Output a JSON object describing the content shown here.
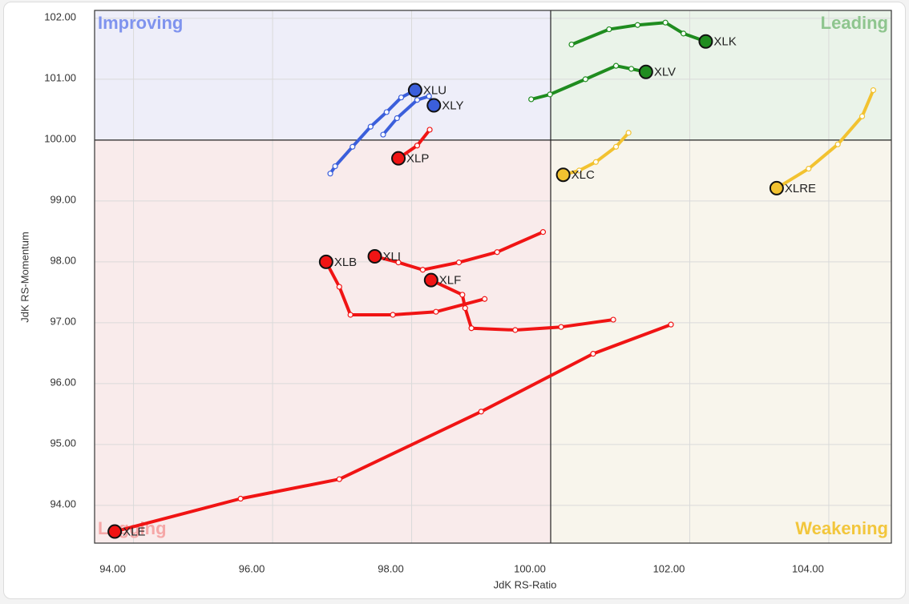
{
  "chart_data": {
    "type": "rrg",
    "x_label": "JdK RS-Ratio",
    "y_label": "JdK RS-Momentum",
    "quadrant_labels": [
      "Improving",
      "Leading",
      "Weakening",
      "Lagging"
    ],
    "quadrant_colors": [
      "#eeeef9",
      "#eaf3e9",
      "#f8f5ec",
      "#f9ebeb"
    ],
    "quadrant_label_colors": [
      "#7f93ee",
      "#8ec58e",
      "#f2c63c",
      "#f5a7a7"
    ],
    "xlim": [
      93.44,
      104.9
    ],
    "ylim": [
      93.38,
      102.13
    ],
    "xticks": [
      {
        "value": 94,
        "label": "94.00"
      },
      {
        "value": 96,
        "label": "96.00"
      },
      {
        "value": 98,
        "label": "98.00"
      },
      {
        "value": 100,
        "label": "100.00"
      },
      {
        "value": 102,
        "label": "102.00"
      },
      {
        "value": 104,
        "label": "104.00"
      }
    ],
    "yticks": [
      {
        "value": 94,
        "label": "94.00"
      },
      {
        "value": 95,
        "label": "95.00"
      },
      {
        "value": 96,
        "label": "96.00"
      },
      {
        "value": 97,
        "label": "97.00"
      },
      {
        "value": 98,
        "label": "98.00"
      },
      {
        "value": 99,
        "label": "99.00"
      },
      {
        "value": 100,
        "label": "100.00"
      },
      {
        "value": 101,
        "label": "101.00"
      },
      {
        "value": 102,
        "label": "102.00"
      }
    ],
    "grid": true,
    "series": [
      {
        "name": "XLK",
        "color": "#1f8c1f",
        "x": [
          100.3,
          100.84,
          101.25,
          101.65,
          101.91,
          102.23
        ],
        "y": [
          101.57,
          101.82,
          101.89,
          101.93,
          101.75,
          101.62
        ]
      },
      {
        "name": "XLV",
        "color": "#1f8c1f",
        "x": [
          99.72,
          99.99,
          100.5,
          100.94,
          101.16,
          101.37
        ],
        "y": [
          100.67,
          100.75,
          101.0,
          101.22,
          101.17,
          101.12
        ]
      },
      {
        "name": "XLU",
        "color": "#3b5fdb",
        "x": [
          96.83,
          96.9,
          97.15,
          97.41,
          97.64,
          97.85,
          98.05
        ],
        "y": [
          99.45,
          99.57,
          99.89,
          100.22,
          100.46,
          100.7,
          100.82
        ]
      },
      {
        "name": "XLY",
        "color": "#3b5fdb",
        "x": [
          97.59,
          97.79,
          98.08,
          98.25,
          98.32
        ],
        "y": [
          100.09,
          100.36,
          100.66,
          100.72,
          100.57
        ]
      },
      {
        "name": "XLP",
        "color": "#f01414",
        "x": [
          98.26,
          98.08,
          97.81
        ],
        "y": [
          100.17,
          99.91,
          99.7
        ]
      },
      {
        "name": "XLC",
        "color": "#f2c230",
        "x": [
          101.12,
          100.94,
          100.65,
          100.41,
          100.18
        ],
        "y": [
          100.12,
          99.89,
          99.64,
          99.5,
          99.43
        ]
      },
      {
        "name": "XLRE",
        "color": "#f2c230",
        "x": [
          104.64,
          104.48,
          104.13,
          103.71,
          103.25
        ],
        "y": [
          100.82,
          100.39,
          99.93,
          99.53,
          99.21
        ]
      },
      {
        "name": "XLI",
        "color": "#f01414",
        "x": [
          99.89,
          99.23,
          98.68,
          98.16,
          97.81,
          97.47
        ],
        "y": [
          98.49,
          98.16,
          97.99,
          97.87,
          97.99,
          98.09
        ]
      },
      {
        "name": "XLB",
        "color": "#f01414",
        "x": [
          99.05,
          98.35,
          97.73,
          97.12,
          96.96,
          96.77
        ],
        "y": [
          97.39,
          97.18,
          97.13,
          97.13,
          97.59,
          98.0
        ]
      },
      {
        "name": "XLF",
        "color": "#f01414",
        "x": [
          100.9,
          100.15,
          99.49,
          98.86,
          98.77,
          98.73,
          98.28
        ],
        "y": [
          97.05,
          96.93,
          96.88,
          96.91,
          97.24,
          97.46,
          97.7
        ]
      },
      {
        "name": "XLE",
        "color": "#f01414",
        "x": [
          101.73,
          100.61,
          99.0,
          96.96,
          95.54,
          93.73
        ],
        "y": [
          96.97,
          96.49,
          95.54,
          94.43,
          94.11,
          93.57
        ]
      }
    ]
  }
}
